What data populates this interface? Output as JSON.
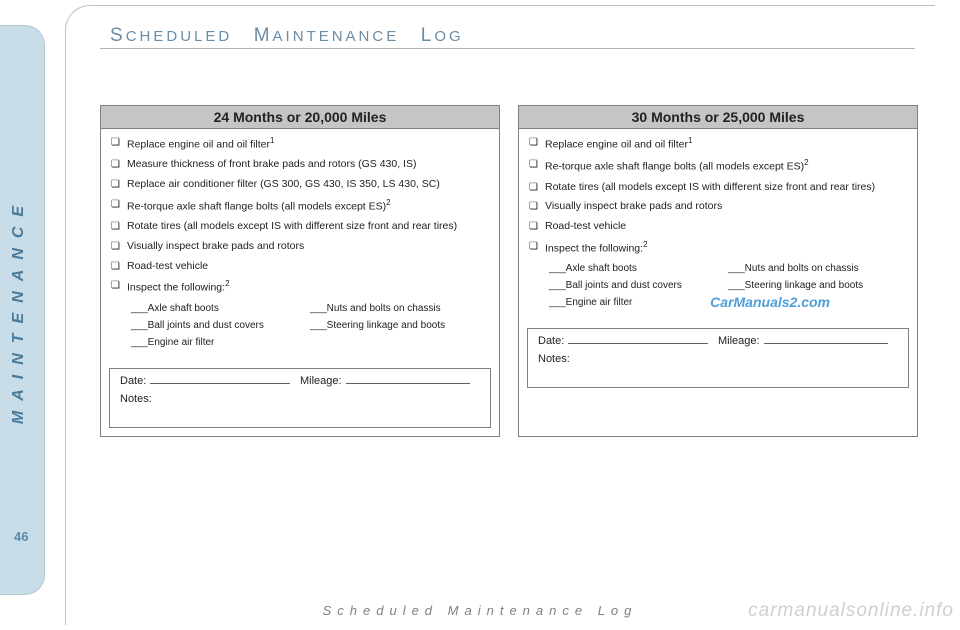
{
  "side_label": "MAINTENANCE",
  "page_number": "46",
  "section_header": {
    "word1_first": "S",
    "word1_rest": "CHEDULED",
    "word2_first": "M",
    "word2_rest": "AINTENANCE",
    "word3_first": "L",
    "word3_rest": "OG"
  },
  "footer_text": "Scheduled Maintenance Log",
  "watermark_cm2": "CarManuals2.com",
  "watermark_cmo": "carmanualsonline.info",
  "notes_labels": {
    "date": "Date:",
    "mileage": "Mileage:",
    "notes": "Notes:"
  },
  "cards": [
    {
      "title": "24 Months or 20,000 Miles",
      "items": [
        {
          "text": "Replace engine oil and oil filter",
          "sup": "1"
        },
        {
          "text": "Measure thickness of front brake pads and rotors (GS 430, IS)"
        },
        {
          "text": "Replace air conditioner filter (GS 300, GS 430, IS 350, LS 430, SC)"
        },
        {
          "text": "Re-torque axle shaft flange bolts (all models except ES)",
          "sup": "2"
        },
        {
          "text": "Rotate tires (all models except IS with different size front and rear tires)"
        },
        {
          "text": "Visually inspect brake pads and rotors"
        },
        {
          "text": "Road-test vehicle"
        },
        {
          "text": "Inspect the following:",
          "sup": "2",
          "sublist": true
        }
      ],
      "sublist_left": [
        "Axle shaft boots",
        "Ball joints and dust covers",
        "Engine air filter"
      ],
      "sublist_right": [
        "Nuts and bolts on chassis",
        "Steering linkage and boots"
      ]
    },
    {
      "title": "30 Months or 25,000 Miles",
      "items": [
        {
          "text": "Replace engine oil and oil filter",
          "sup": "1"
        },
        {
          "text": "Re-torque axle shaft flange bolts (all models except ES)",
          "sup": "2"
        },
        {
          "text": "Rotate tires (all models except IS with different size front and rear tires)"
        },
        {
          "text": "Visually inspect brake pads and rotors"
        },
        {
          "text": "Road-test vehicle"
        },
        {
          "text": "Inspect the following:",
          "sup": "2",
          "sublist": true
        }
      ],
      "sublist_left": [
        "Axle shaft boots",
        "Ball joints and dust covers",
        "Engine air filter"
      ],
      "sublist_right": [
        "Nuts and bolts on chassis",
        "Steering linkage and boots"
      ]
    }
  ]
}
